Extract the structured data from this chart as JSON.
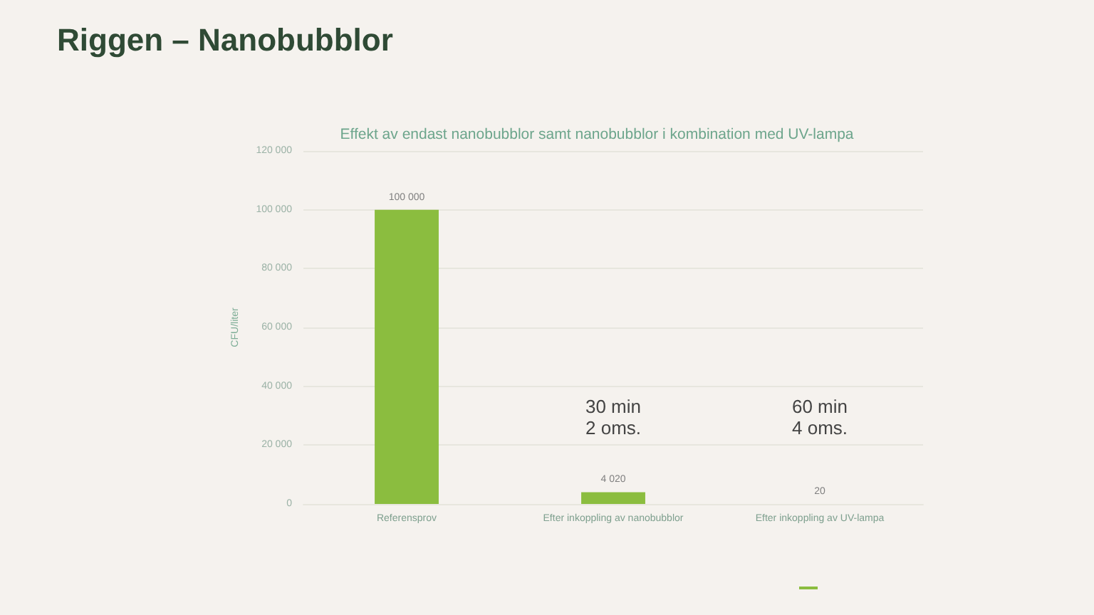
{
  "chart_data": {
    "type": "bar",
    "title": "Riggen – Nanobubblor",
    "subtitle": "Effekt av endast nanobubblor samt nanobubblor i kombination med UV-lampa",
    "ylabel": "CFU/liter",
    "categories": [
      "Referensprov",
      "Efter inkoppling av nanobubblor",
      "Efter inkoppling av UV-lampa"
    ],
    "values": [
      100000,
      4020,
      20
    ],
    "color": "#8bbd3f",
    "value_labels": [
      "100 000",
      "4 020",
      "20"
    ],
    "ylim": [
      0,
      120000
    ],
    "yticks": [
      0,
      {
        "value": 20000,
        "label": "20 000"
      },
      {
        "value": 40000,
        "label": "40 000"
      },
      {
        "value": 60000,
        "label": "60 000"
      },
      {
        "value": 80000,
        "label": "80 000"
      },
      {
        "value": 100000,
        "label": "100 000"
      },
      {
        "value": 120000,
        "label": "120 000"
      }
    ],
    "grid": "y",
    "annotations": [
      "30 min\n2 oms.",
      "60 min\n4 oms."
    ]
  }
}
